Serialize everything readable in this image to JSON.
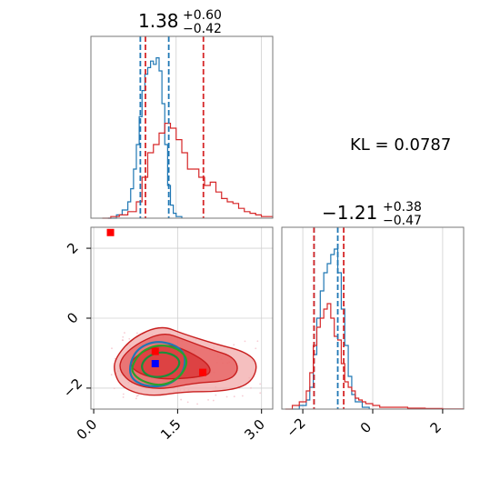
{
  "chart_data": [
    {
      "panel": "marginal-x",
      "type": "histogram",
      "title": {
        "main": "1.38",
        "sup": "+0.60",
        "sub": "−0.42"
      },
      "xlim": [
        0.0,
        3.2
      ],
      "series": [
        {
          "name": "",
          "color": "#1f77b4",
          "x": [
            0.3,
            0.45,
            0.55,
            0.65,
            0.7,
            0.75,
            0.8,
            0.85,
            0.9,
            0.95,
            1.0,
            1.05,
            1.1,
            1.15,
            1.2,
            1.25,
            1.3,
            1.35,
            1.4,
            1.45,
            1.5,
            1.6
          ],
          "y": [
            0,
            0.02,
            0.05,
            0.1,
            0.18,
            0.3,
            0.45,
            0.62,
            0.78,
            0.88,
            0.92,
            0.96,
            0.94,
            0.98,
            0.9,
            0.7,
            0.45,
            0.2,
            0.08,
            0.03,
            0.01,
            0
          ]
        },
        {
          "name": "",
          "color": "#d62728",
          "x": [
            0.2,
            0.35,
            0.5,
            0.65,
            0.8,
            0.9,
            1.0,
            1.1,
            1.2,
            1.3,
            1.4,
            1.5,
            1.6,
            1.7,
            1.8,
            1.9,
            2.0,
            2.1,
            2.2,
            2.3,
            2.4,
            2.5,
            2.6,
            2.7,
            2.8,
            2.9,
            3.0,
            3.2
          ],
          "y": [
            0,
            0.01,
            0.02,
            0.04,
            0.1,
            0.25,
            0.4,
            0.45,
            0.52,
            0.58,
            0.55,
            0.48,
            0.4,
            0.3,
            0.3,
            0.25,
            0.2,
            0.22,
            0.16,
            0.12,
            0.1,
            0.09,
            0.06,
            0.04,
            0.03,
            0.02,
            0.01,
            0
          ]
        }
      ],
      "vlines": [
        {
          "x": 0.87,
          "color": "#1f77b4"
        },
        {
          "x": 1.37,
          "color": "#1f77b4"
        },
        {
          "x": 0.96,
          "color": "#d62728"
        },
        {
          "x": 1.98,
          "color": "#d62728"
        }
      ]
    },
    {
      "panel": "marginal-y",
      "type": "histogram",
      "title": {
        "main": "−1.21",
        "sup": "+0.38",
        "sub": "−0.47"
      },
      "xlim": [
        -2.6,
        2.6
      ],
      "xticks": [
        -2,
        0,
        2
      ],
      "xtick_labels": [
        "−2",
        "0",
        "2"
      ],
      "series": [
        {
          "name": "",
          "color": "#1f77b4",
          "x": [
            -2.3,
            -2.1,
            -1.9,
            -1.8,
            -1.7,
            -1.6,
            -1.5,
            -1.4,
            -1.3,
            -1.2,
            -1.1,
            -1.0,
            -0.9,
            -0.8,
            -0.7,
            -0.6,
            -0.5,
            -0.3,
            -0.1
          ],
          "y": [
            0,
            0.02,
            0.05,
            0.12,
            0.3,
            0.5,
            0.65,
            0.75,
            0.8,
            0.85,
            0.88,
            0.75,
            0.55,
            0.35,
            0.18,
            0.08,
            0.04,
            0.01,
            0
          ]
        },
        {
          "name": "",
          "color": "#d62728",
          "x": [
            -2.5,
            -2.3,
            -2.1,
            -1.9,
            -1.8,
            -1.7,
            -1.6,
            -1.5,
            -1.4,
            -1.3,
            -1.2,
            -1.1,
            -1.0,
            -0.9,
            -0.8,
            -0.7,
            -0.6,
            -0.5,
            -0.4,
            -0.3,
            -0.2,
            0.0,
            0.2,
            0.6,
            1.0,
            1.5,
            2.0,
            2.6
          ],
          "y": [
            0,
            0.02,
            0.04,
            0.1,
            0.2,
            0.35,
            0.45,
            0.5,
            0.55,
            0.58,
            0.5,
            0.4,
            0.38,
            0.25,
            0.15,
            0.12,
            0.1,
            0.06,
            0.05,
            0.04,
            0.03,
            0.02,
            0.01,
            0.01,
            0.005,
            0.003,
            0.001,
            0
          ]
        }
      ],
      "vlines": [
        {
          "x": -1.68,
          "color": "#1f77b4"
        },
        {
          "x": -1.0,
          "color": "#1f77b4"
        },
        {
          "x": -1.68,
          "color": "#d62728"
        },
        {
          "x": -0.83,
          "color": "#d62728"
        }
      ]
    },
    {
      "panel": "joint",
      "type": "contour",
      "xlim": [
        -0.05,
        3.2
      ],
      "ylim": [
        -2.6,
        2.6
      ],
      "xticks": [
        0.0,
        1.5,
        3.0
      ],
      "xtick_labels": [
        "0.0",
        "1.5",
        "3.0"
      ],
      "yticks": [
        -2,
        0,
        2
      ],
      "ytick_labels": [
        "−2",
        "0",
        "2"
      ],
      "grid": true,
      "contours": [
        {
          "color": "#f2aaaa",
          "points": [
            [
              0.4,
              -1.1
            ],
            [
              0.7,
              -0.55
            ],
            [
              1.2,
              -0.2
            ],
            [
              1.6,
              -0.45
            ],
            [
              2.2,
              -0.75
            ],
            [
              2.7,
              -0.95
            ],
            [
              2.95,
              -1.3
            ],
            [
              2.8,
              -1.9
            ],
            [
              2.3,
              -2.1
            ],
            [
              1.6,
              -2.1
            ],
            [
              1.0,
              -2.25
            ],
            [
              0.5,
              -2.0
            ],
            [
              0.35,
              -1.5
            ]
          ]
        },
        {
          "color": "#e55555",
          "points": [
            [
              0.5,
              -1.1
            ],
            [
              0.8,
              -0.7
            ],
            [
              1.25,
              -0.4
            ],
            [
              1.6,
              -0.6
            ],
            [
              2.1,
              -0.9
            ],
            [
              2.5,
              -1.1
            ],
            [
              2.6,
              -1.5
            ],
            [
              2.4,
              -1.8
            ],
            [
              1.8,
              -1.85
            ],
            [
              1.2,
              -2.05
            ],
            [
              0.7,
              -1.9
            ],
            [
              0.45,
              -1.5
            ]
          ]
        },
        {
          "color": "#d62728",
          "points": [
            [
              0.7,
              -1.15
            ],
            [
              1.0,
              -0.85
            ],
            [
              1.35,
              -0.75
            ],
            [
              1.7,
              -0.95
            ],
            [
              2.05,
              -1.3
            ],
            [
              2.1,
              -1.6
            ],
            [
              1.8,
              -1.7
            ],
            [
              1.3,
              -1.75
            ],
            [
              0.9,
              -1.65
            ],
            [
              0.65,
              -1.4
            ]
          ]
        },
        {
          "color": "#1f77b4",
          "points": [
            [
              0.65,
              -1.25
            ],
            [
              0.8,
              -0.85
            ],
            [
              1.1,
              -0.65
            ],
            [
              1.45,
              -0.75
            ],
            [
              1.65,
              -1.05
            ],
            [
              1.6,
              -1.6
            ],
            [
              1.3,
              -1.95
            ],
            [
              0.9,
              -1.95
            ],
            [
              0.65,
              -1.7
            ]
          ]
        },
        {
          "color": "#2ca02c",
          "points": [
            [
              0.7,
              -1.3
            ],
            [
              0.85,
              -0.95
            ],
            [
              1.15,
              -0.75
            ],
            [
              1.5,
              -0.85
            ],
            [
              1.7,
              -1.2
            ],
            [
              1.55,
              -1.7
            ],
            [
              1.2,
              -1.95
            ],
            [
              0.85,
              -1.8
            ],
            [
              0.68,
              -1.55
            ]
          ]
        },
        {
          "color": "#1a8f3a",
          "points": [
            [
              0.85,
              -1.3
            ],
            [
              1.0,
              -1.05
            ],
            [
              1.25,
              -0.95
            ],
            [
              1.5,
              -1.1
            ],
            [
              1.55,
              -1.35
            ],
            [
              1.35,
              -1.65
            ],
            [
              1.05,
              -1.7
            ],
            [
              0.88,
              -1.55
            ]
          ]
        }
      ],
      "markers": [
        {
          "x": 0.3,
          "y": 2.45,
          "color": "#ff0000"
        },
        {
          "x": 1.1,
          "y": -0.95,
          "color": "#ff0000"
        },
        {
          "x": 1.95,
          "y": -1.55,
          "color": "#ff0000"
        },
        {
          "x": 1.1,
          "y": -1.3,
          "color": "#0000ff"
        }
      ]
    }
  ],
  "annotation": {
    "text": "KL = 0.0787"
  }
}
